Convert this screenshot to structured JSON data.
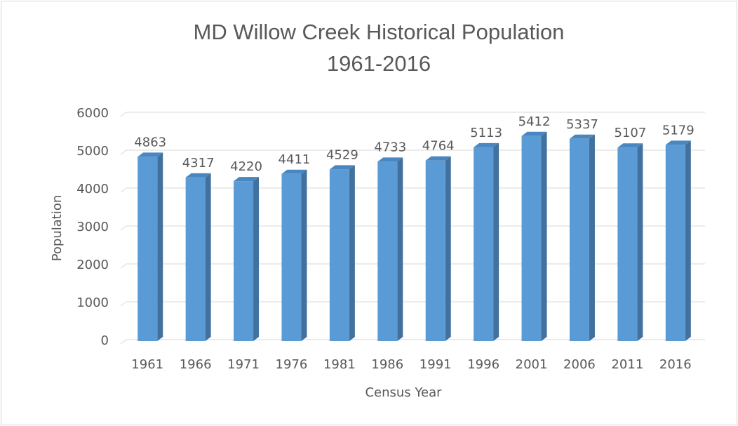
{
  "chart_data": {
    "type": "bar",
    "title": [
      "MD Willow Creek Historical Population",
      "1961-2016"
    ],
    "x_label": "Census Year",
    "y_label": "Population",
    "categories": [
      "1961",
      "1966",
      "1971",
      "1976",
      "1981",
      "1986",
      "1991",
      "1996",
      "2001",
      "2006",
      "2011",
      "2016"
    ],
    "values": [
      4863,
      4317,
      4220,
      4411,
      4529,
      4733,
      4764,
      5113,
      5412,
      5337,
      5107,
      5179
    ],
    "color": "#5b9bd5",
    "ylim": [
      0,
      6000
    ],
    "yticks": [
      0,
      1000,
      2000,
      3000,
      4000,
      5000,
      6000
    ],
    "grid": true
  }
}
